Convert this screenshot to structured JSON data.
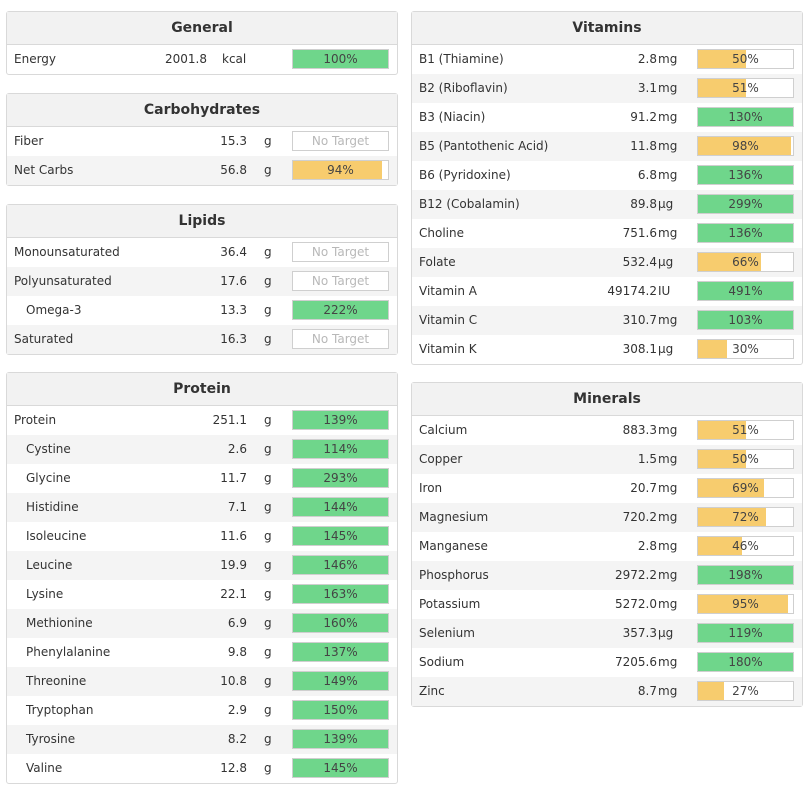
{
  "colors": {
    "green": "#6fd68b",
    "orange": "#f7cc6e"
  },
  "no_target_label": "No Target",
  "general": {
    "title": "General",
    "rows": [
      {
        "name": "Energy",
        "amount": "2001.8",
        "unit": "kcal",
        "pct": "100%",
        "fill": 100,
        "color": "green"
      }
    ]
  },
  "carbohydrates": {
    "title": "Carbohydrates",
    "rows": [
      {
        "name": "Fiber",
        "amount": "15.3",
        "unit": "g",
        "pct": "No Target",
        "fill": 0,
        "color": "none"
      },
      {
        "name": "Net Carbs",
        "amount": "56.8",
        "unit": "g",
        "pct": "94%",
        "fill": 94,
        "color": "orange"
      }
    ]
  },
  "lipids": {
    "title": "Lipids",
    "rows": [
      {
        "name": "Monounsaturated",
        "amount": "36.4",
        "unit": "g",
        "pct": "No Target",
        "fill": 0,
        "color": "none"
      },
      {
        "name": "Polyunsaturated",
        "amount": "17.6",
        "unit": "g",
        "pct": "No Target",
        "fill": 0,
        "color": "none"
      },
      {
        "name": "Omega-3",
        "amount": "13.3",
        "unit": "g",
        "pct": "222%",
        "fill": 100,
        "color": "green",
        "indent": true
      },
      {
        "name": "Saturated",
        "amount": "16.3",
        "unit": "g",
        "pct": "No Target",
        "fill": 0,
        "color": "none"
      }
    ]
  },
  "protein": {
    "title": "Protein",
    "rows": [
      {
        "name": "Protein",
        "amount": "251.1",
        "unit": "g",
        "pct": "139%",
        "fill": 100,
        "color": "green"
      },
      {
        "name": "Cystine",
        "amount": "2.6",
        "unit": "g",
        "pct": "114%",
        "fill": 100,
        "color": "green",
        "indent": true
      },
      {
        "name": "Glycine",
        "amount": "11.7",
        "unit": "g",
        "pct": "293%",
        "fill": 100,
        "color": "green",
        "indent": true
      },
      {
        "name": "Histidine",
        "amount": "7.1",
        "unit": "g",
        "pct": "144%",
        "fill": 100,
        "color": "green",
        "indent": true
      },
      {
        "name": "Isoleucine",
        "amount": "11.6",
        "unit": "g",
        "pct": "145%",
        "fill": 100,
        "color": "green",
        "indent": true
      },
      {
        "name": "Leucine",
        "amount": "19.9",
        "unit": "g",
        "pct": "146%",
        "fill": 100,
        "color": "green",
        "indent": true
      },
      {
        "name": "Lysine",
        "amount": "22.1",
        "unit": "g",
        "pct": "163%",
        "fill": 100,
        "color": "green",
        "indent": true
      },
      {
        "name": "Methionine",
        "amount": "6.9",
        "unit": "g",
        "pct": "160%",
        "fill": 100,
        "color": "green",
        "indent": true
      },
      {
        "name": "Phenylalanine",
        "amount": "9.8",
        "unit": "g",
        "pct": "137%",
        "fill": 100,
        "color": "green",
        "indent": true
      },
      {
        "name": "Threonine",
        "amount": "10.8",
        "unit": "g",
        "pct": "149%",
        "fill": 100,
        "color": "green",
        "indent": true
      },
      {
        "name": "Tryptophan",
        "amount": "2.9",
        "unit": "g",
        "pct": "150%",
        "fill": 100,
        "color": "green",
        "indent": true
      },
      {
        "name": "Tyrosine",
        "amount": "8.2",
        "unit": "g",
        "pct": "139%",
        "fill": 100,
        "color": "green",
        "indent": true
      },
      {
        "name": "Valine",
        "amount": "12.8",
        "unit": "g",
        "pct": "145%",
        "fill": 100,
        "color": "green",
        "indent": true
      }
    ]
  },
  "vitamins": {
    "title": "Vitamins",
    "rows": [
      {
        "name": "B1 (Thiamine)",
        "amount": "2.8",
        "unit": "mg",
        "pct": "50%",
        "fill": 50,
        "color": "orange"
      },
      {
        "name": "B2 (Riboflavin)",
        "amount": "3.1",
        "unit": "mg",
        "pct": "51%",
        "fill": 51,
        "color": "orange"
      },
      {
        "name": "B3 (Niacin)",
        "amount": "91.2",
        "unit": "mg",
        "pct": "130%",
        "fill": 100,
        "color": "green"
      },
      {
        "name": "B5 (Pantothenic Acid)",
        "amount": "11.8",
        "unit": "mg",
        "pct": "98%",
        "fill": 98,
        "color": "orange"
      },
      {
        "name": "B6 (Pyridoxine)",
        "amount": "6.8",
        "unit": "mg",
        "pct": "136%",
        "fill": 100,
        "color": "green"
      },
      {
        "name": "B12 (Cobalamin)",
        "amount": "89.8",
        "unit": "µg",
        "pct": "299%",
        "fill": 100,
        "color": "green"
      },
      {
        "name": "Choline",
        "amount": "751.6",
        "unit": "mg",
        "pct": "136%",
        "fill": 100,
        "color": "green"
      },
      {
        "name": "Folate",
        "amount": "532.4",
        "unit": "µg",
        "pct": "66%",
        "fill": 66,
        "color": "orange"
      },
      {
        "name": "Vitamin A",
        "amount": "49174.2",
        "unit": "IU",
        "pct": "491%",
        "fill": 100,
        "color": "green"
      },
      {
        "name": "Vitamin C",
        "amount": "310.7",
        "unit": "mg",
        "pct": "103%",
        "fill": 100,
        "color": "green"
      },
      {
        "name": "Vitamin K",
        "amount": "308.1",
        "unit": "µg",
        "pct": "30%",
        "fill": 30,
        "color": "orange"
      }
    ]
  },
  "minerals": {
    "title": "Minerals",
    "rows": [
      {
        "name": "Calcium",
        "amount": "883.3",
        "unit": "mg",
        "pct": "51%",
        "fill": 51,
        "color": "orange"
      },
      {
        "name": "Copper",
        "amount": "1.5",
        "unit": "mg",
        "pct": "50%",
        "fill": 50,
        "color": "orange"
      },
      {
        "name": "Iron",
        "amount": "20.7",
        "unit": "mg",
        "pct": "69%",
        "fill": 69,
        "color": "orange"
      },
      {
        "name": "Magnesium",
        "amount": "720.2",
        "unit": "mg",
        "pct": "72%",
        "fill": 72,
        "color": "orange"
      },
      {
        "name": "Manganese",
        "amount": "2.8",
        "unit": "mg",
        "pct": "46%",
        "fill": 46,
        "color": "orange"
      },
      {
        "name": "Phosphorus",
        "amount": "2972.2",
        "unit": "mg",
        "pct": "198%",
        "fill": 100,
        "color": "green"
      },
      {
        "name": "Potassium",
        "amount": "5272.0",
        "unit": "mg",
        "pct": "95%",
        "fill": 95,
        "color": "orange"
      },
      {
        "name": "Selenium",
        "amount": "357.3",
        "unit": "µg",
        "pct": "119%",
        "fill": 100,
        "color": "green"
      },
      {
        "name": "Sodium",
        "amount": "7205.6",
        "unit": "mg",
        "pct": "180%",
        "fill": 100,
        "color": "green"
      },
      {
        "name": "Zinc",
        "amount": "8.7",
        "unit": "mg",
        "pct": "27%",
        "fill": 27,
        "color": "orange"
      }
    ]
  }
}
